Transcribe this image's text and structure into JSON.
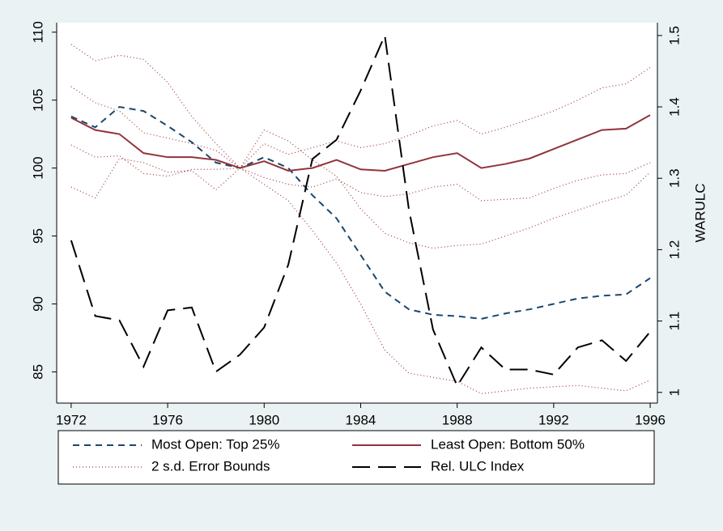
{
  "chart_data": {
    "type": "line",
    "x": [
      1972,
      1973,
      1974,
      1975,
      1976,
      1977,
      1978,
      1979,
      1980,
      1981,
      1982,
      1983,
      1984,
      1985,
      1986,
      1987,
      1988,
      1989,
      1990,
      1991,
      1992,
      1993,
      1994,
      1995,
      1996
    ],
    "xlim": [
      1971.4,
      1996.3
    ],
    "xticks": [
      1972,
      1976,
      1980,
      1984,
      1988,
      1992,
      1996
    ],
    "ylim": [
      82.7,
      110.7
    ],
    "yticks": [
      85,
      90,
      95,
      100,
      105,
      110
    ],
    "y2lim": [
      0.985,
      1.518
    ],
    "y2ticks": [
      1,
      1.1,
      1.2,
      1.3,
      1.4,
      1.5
    ],
    "y2label": "WARULC",
    "series": [
      {
        "name": "Most Open: Top 25%",
        "color": "#1a476f",
        "dash": "8,6",
        "values": [
          103.8,
          103.0,
          104.5,
          104.2,
          103.1,
          101.9,
          100.4,
          100.0,
          100.8,
          100.0,
          98.0,
          96.3,
          93.6,
          90.9,
          89.6,
          89.2,
          89.1,
          88.9,
          89.3,
          89.6,
          90.0,
          90.4,
          90.6,
          90.7,
          91.9
        ]
      },
      {
        "name": "Least Open: Bottom 50%",
        "color": "#90353b",
        "dash": "none",
        "values": [
          103.7,
          102.8,
          102.5,
          101.1,
          100.8,
          100.8,
          100.6,
          100.0,
          100.5,
          99.8,
          100.0,
          100.6,
          99.9,
          99.8,
          100.3,
          100.8,
          101.1,
          100.0,
          100.3,
          100.7,
          101.4,
          102.1,
          102.8,
          102.9,
          103.9
        ]
      },
      {
        "name": "Rel. ULC Index",
        "color": "#000000",
        "dash": "22,10",
        "axis": "y2",
        "values": [
          1.213,
          1.107,
          1.101,
          1.036,
          1.115,
          1.119,
          1.029,
          1.053,
          1.091,
          1.179,
          1.327,
          1.354,
          1.423,
          1.5,
          1.256,
          1.088,
          1.009,
          1.063,
          1.032,
          1.032,
          1.025,
          1.063,
          1.073,
          1.044,
          1.085
        ]
      }
    ],
    "bounds": {
      "name": "2 s.d. Error Bounds",
      "color": "#a0393e",
      "dash": "1,3",
      "values": [
        [
          109.1,
          107.9,
          108.3,
          108.0,
          106.3,
          103.8,
          101.8,
          100.0,
          102.8,
          102.0,
          100.6,
          99.4,
          97.0,
          95.2,
          94.5,
          94.1,
          94.3,
          94.4,
          95.0,
          95.6,
          96.3,
          96.9,
          97.5,
          98.0,
          99.7
        ],
        [
          98.6,
          97.8,
          100.7,
          100.4,
          99.7,
          99.8,
          98.4,
          100.0,
          98.8,
          97.6,
          95.4,
          93.0,
          90.0,
          86.6,
          84.9,
          84.6,
          84.3,
          83.4,
          83.6,
          83.8,
          83.9,
          84.0,
          83.8,
          83.6,
          84.4
        ],
        [
          106.0,
          104.8,
          104.2,
          102.6,
          102.2,
          101.8,
          101.3,
          100.0,
          101.8,
          101.0,
          101.5,
          102.0,
          101.5,
          101.8,
          102.4,
          103.1,
          103.5,
          102.5,
          103.0,
          103.6,
          104.2,
          105.0,
          105.9,
          106.2,
          107.4
        ],
        [
          101.7,
          100.8,
          100.9,
          99.6,
          99.4,
          99.9,
          99.9,
          100.0,
          99.3,
          98.8,
          98.6,
          99.2,
          98.2,
          97.9,
          98.1,
          98.6,
          98.8,
          97.6,
          97.7,
          97.8,
          98.5,
          99.1,
          99.5,
          99.6,
          100.4
        ]
      ]
    }
  }
}
